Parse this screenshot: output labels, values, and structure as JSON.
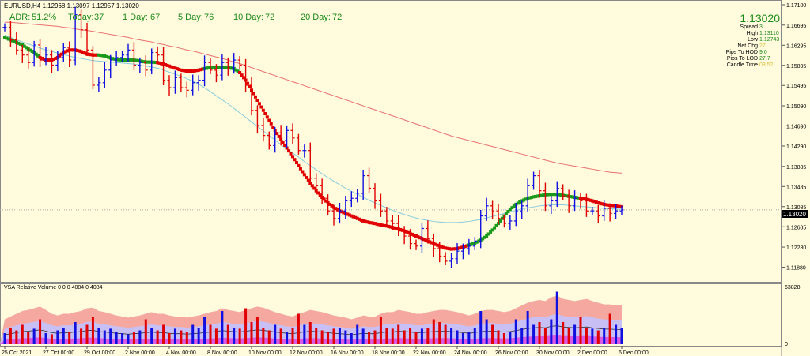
{
  "header": {
    "symbol_line": "EURUSD,H4  1.12968 1.13097 1.12957 1.13020",
    "adr_label": "ADR:",
    "adr_value": "51.2%",
    "sep": "|",
    "today_label": "Today:",
    "today_value": "37",
    "day1_label": "1 Day:",
    "day1_value": "67",
    "day5_label": "5 Day:",
    "day5_value": "76",
    "day10_label": "10 Day:",
    "day10_value": "72",
    "day20_label": "20 Day:",
    "day20_value": "72"
  },
  "info_panel": {
    "price": "1.13020",
    "rows": [
      {
        "label": "Spread",
        "value": "3"
      },
      {
        "label": "High",
        "value": "1.13110"
      },
      {
        "label": "Low",
        "value": "1.12743"
      },
      {
        "label": "Net Chg",
        "value": "27"
      },
      {
        "label": "Pips To HOD",
        "value": "9.0"
      },
      {
        "label": "Pips To LOD",
        "value": "27.7"
      },
      {
        "label": "Candle Time",
        "value": "03:52"
      }
    ]
  },
  "current_price_label": "1.13020",
  "volume_panel": {
    "title": "VSA Relative Volume 0 0 0 4084 0 4084",
    "max_label": "63828",
    "min_label": "0"
  },
  "colors": {
    "bg": "#fffbdc",
    "bull": "#1010e0",
    "bear": "#e00000",
    "ma_red": "#e00000",
    "ma_green": "#1a9a1a",
    "ma_cyan": "#88ccdd",
    "ma_slow": "#e87070",
    "vol_pink": "#f4a8a0",
    "vol_lav": "#c8c0f4",
    "vol_mag": "#e040e0"
  },
  "chart_data": {
    "type": "line",
    "title": "EURUSD,H4",
    "ylim": [
      1.117,
      1.171
    ],
    "y_ticks": [
      "1.17100",
      "1.16695",
      "1.16295",
      "1.15895",
      "1.15495",
      "1.15090",
      "1.14690",
      "1.14290",
      "1.13885",
      "1.13485",
      "1.13085",
      "1.12685",
      "1.12280",
      "1.11880"
    ],
    "x_ticks": [
      "25 Oct 2021",
      "27 Oct 00:00",
      "29 Oct 00:00",
      "2 Nov 00:00",
      "4 Nov 00:00",
      "8 Nov 00:00",
      "10 Nov 00:00",
      "12 Nov 00:00",
      "16 Nov 00:00",
      "18 Nov 00:00",
      "22 Nov 00:00",
      "24 Nov 00:00",
      "26 Nov 00:00",
      "30 Nov 00:00",
      "2 Dec 00:00",
      "6 Dec 00:00"
    ],
    "closes": [
      1.1665,
      1.164,
      1.162,
      1.161,
      1.1595,
      1.163,
      1.16,
      1.161,
      1.159,
      1.1605,
      1.1625,
      1.16,
      1.169,
      1.166,
      1.162,
      1.155,
      1.1555,
      1.158,
      1.16,
      1.1605,
      1.161,
      1.162,
      1.159,
      1.1595,
      1.158,
      1.1615,
      1.161,
      1.156,
      1.1545,
      1.1565,
      1.1545,
      1.154,
      1.1555,
      1.156,
      1.1595,
      1.158,
      1.157,
      1.1595,
      1.1585,
      1.16,
      1.159,
      1.155,
      1.15,
      1.147,
      1.145,
      1.143,
      1.1455,
      1.144,
      1.146,
      1.1445,
      1.142,
      1.142,
      1.1365,
      1.135,
      1.1325,
      1.13,
      1.1285,
      1.13,
      1.132,
      1.1325,
      1.1335,
      1.137,
      1.1345,
      1.132,
      1.13,
      1.128,
      1.1275,
      1.126,
      1.125,
      1.1235,
      1.123,
      1.1265,
      1.1245,
      1.1225,
      1.121,
      1.12,
      1.1205,
      1.122,
      1.1225,
      1.123,
      1.124,
      1.129,
      1.131,
      1.13,
      1.1285,
      1.1275,
      1.128,
      1.13,
      1.131,
      1.135,
      1.137,
      1.134,
      1.131,
      1.132,
      1.1345,
      1.133,
      1.131,
      1.1325,
      1.132,
      1.13,
      1.13,
      1.129,
      1.1305,
      1.1295,
      1.13,
      1.1302
    ],
    "ma_fast": [
      1.1645,
      1.164,
      1.1635,
      1.163,
      1.1622,
      1.1615,
      1.1605,
      1.16,
      1.16,
      1.1605,
      1.1615,
      1.162,
      1.162,
      1.1617,
      1.1612,
      1.161,
      1.161,
      1.1608,
      1.1604,
      1.1601,
      1.16,
      1.16,
      1.16,
      1.1598,
      1.1596,
      1.1596,
      1.1595,
      1.1592,
      1.1588,
      1.1584,
      1.158,
      1.1578,
      1.1578,
      1.158,
      1.1583,
      1.1585,
      1.1585,
      1.1585,
      1.1585,
      1.1583,
      1.1575,
      1.156,
      1.154,
      1.152,
      1.15,
      1.148,
      1.146,
      1.1442,
      1.1425,
      1.1408,
      1.139,
      1.1372,
      1.1355,
      1.134,
      1.1327,
      1.1316,
      1.1307,
      1.13,
      1.1295,
      1.129,
      1.1285,
      1.128,
      1.1277,
      1.1275,
      1.1272,
      1.127,
      1.1267,
      1.1264,
      1.126,
      1.1255,
      1.125,
      1.1245,
      1.124,
      1.1235,
      1.123,
      1.1226,
      1.1224,
      1.1225,
      1.1228,
      1.1232,
      1.1236,
      1.1242,
      1.125,
      1.1262,
      1.1275,
      1.129,
      1.1303,
      1.1313,
      1.132,
      1.1325,
      1.1328,
      1.133,
      1.1332,
      1.1333,
      1.1333,
      1.1331,
      1.1329,
      1.1327,
      1.1325,
      1.1323,
      1.132,
      1.1316,
      1.1313,
      1.1311,
      1.131,
      1.1308
    ],
    "ma_fast_green": [
      [
        0,
        5
      ],
      [
        16,
        25
      ],
      [
        34,
        39
      ],
      [
        79,
        97
      ]
    ],
    "ma_mid": [
      1.165,
      1.1645,
      1.164,
      1.1636,
      1.1632,
      1.1628,
      1.1624,
      1.162,
      1.1617,
      1.1614,
      1.1611,
      1.1608,
      1.1605,
      1.1603,
      1.1601,
      1.1599,
      1.1598,
      1.1597,
      1.1596,
      1.1595,
      1.1594,
      1.1593,
      1.1592,
      1.159,
      1.1588,
      1.1586,
      1.1584,
      1.158,
      1.1576,
      1.1572,
      1.1568,
      1.1563,
      1.1558,
      1.1552,
      1.1545,
      1.1537,
      1.1529,
      1.1521,
      1.1513,
      1.1504,
      1.1495,
      1.1486,
      1.1477,
      1.1468,
      1.1459,
      1.145,
      1.1441,
      1.1432,
      1.1423,
      1.1415,
      1.1407,
      1.1398,
      1.139,
      1.1382,
      1.1374,
      1.1366,
      1.1359,
      1.1352,
      1.1345,
      1.1339,
      1.1333,
      1.1327,
      1.1321,
      1.1316,
      1.1311,
      1.1306,
      1.1301,
      1.1297,
      1.1293,
      1.1289,
      1.1286,
      1.1283,
      1.1281,
      1.1279,
      1.1278,
      1.1277,
      1.1277,
      1.1277,
      1.1278,
      1.1279,
      1.1281,
      1.1283,
      1.1286,
      1.1289,
      1.1292,
      1.1295,
      1.1298,
      1.1301,
      1.1304,
      1.1306,
      1.1308,
      1.131,
      1.1311,
      1.1312,
      1.1312,
      1.1312,
      1.1311,
      1.131,
      1.1309,
      1.1308,
      1.1307,
      1.1306,
      1.1305,
      1.1304,
      1.1304,
      1.1303
    ],
    "ma_slow": [
      1.1675,
      1.1675,
      1.1674,
      1.1673,
      1.1672,
      1.1671,
      1.167,
      1.1669,
      1.1668,
      1.1667,
      1.1665,
      1.1664,
      1.1662,
      1.166,
      1.1659,
      1.1657,
      1.1655,
      1.1653,
      1.1651,
      1.1649,
      1.1647,
      1.1645,
      1.1642,
      1.164,
      1.1638,
      1.1636,
      1.1633,
      1.1631,
      1.1628,
      1.1626,
      1.1623,
      1.162,
      1.1618,
      1.1615,
      1.1612,
      1.1609,
      1.1606,
      1.1603,
      1.16,
      1.1596,
      1.1593,
      1.1589,
      1.1585,
      1.1581,
      1.1577,
      1.1573,
      1.1569,
      1.1565,
      1.1561,
      1.1557,
      1.1553,
      1.1549,
      1.1545,
      1.1541,
      1.1537,
      1.1533,
      1.1529,
      1.1525,
      1.1521,
      1.1517,
      1.1513,
      1.1509,
      1.1505,
      1.1501,
      1.1497,
      1.1493,
      1.1489,
      1.1485,
      1.1481,
      1.1477,
      1.1473,
      1.1469,
      1.1465,
      1.1461,
      1.1457,
      1.1453,
      1.1449,
      1.1446,
      1.1443,
      1.144,
      1.1437,
      1.1434,
      1.1431,
      1.1428,
      1.1425,
      1.1422,
      1.1419,
      1.1416,
      1.1413,
      1.141,
      1.1407,
      1.1404,
      1.1401,
      1.1398,
      1.1395,
      1.1393,
      1.1391,
      1.1389,
      1.1387,
      1.1385,
      1.1383,
      1.1381,
      1.1379,
      1.1377,
      1.1376,
      1.1375
    ],
    "volume": [
      0.2,
      0.3,
      0.25,
      0.35,
      0.22,
      0.28,
      0.45,
      0.2,
      0.18,
      0.25,
      0.3,
      0.22,
      0.4,
      0.28,
      0.35,
      0.5,
      0.3,
      0.25,
      0.28,
      0.22,
      0.2,
      0.18,
      0.22,
      0.25,
      0.45,
      0.3,
      0.25,
      0.35,
      0.2,
      0.28,
      0.25,
      0.22,
      0.35,
      0.3,
      0.5,
      0.35,
      0.28,
      0.6,
      0.35,
      0.3,
      0.28,
      0.65,
      0.4,
      0.5,
      0.3,
      0.25,
      0.35,
      0.28,
      0.22,
      0.3,
      0.55,
      0.35,
      0.4,
      0.3,
      0.25,
      0.22,
      0.28,
      0.3,
      0.25,
      0.2,
      0.35,
      0.28,
      0.22,
      0.25,
      0.5,
      0.3,
      0.28,
      0.35,
      0.25,
      0.3,
      0.22,
      0.28,
      0.3,
      0.45,
      0.4,
      0.35,
      0.3,
      0.25,
      0.2,
      0.22,
      0.3,
      0.6,
      0.45,
      0.35,
      0.25,
      0.2,
      0.22,
      0.45,
      0.3,
      0.6,
      0.35,
      0.4,
      0.3,
      0.45,
      0.95,
      0.4,
      0.3,
      0.35,
      0.5,
      0.3,
      0.28,
      0.25,
      0.3,
      0.55,
      0.35,
      0.3
    ],
    "vol_bg": [
      0.45,
      0.5,
      0.55,
      0.6,
      0.62,
      0.65,
      0.68,
      0.62,
      0.55,
      0.52,
      0.55,
      0.55,
      0.58,
      0.6,
      0.65,
      0.66,
      0.6,
      0.58,
      0.55,
      0.52,
      0.5,
      0.48,
      0.5,
      0.52,
      0.55,
      0.58,
      0.55,
      0.55,
      0.52,
      0.5,
      0.5,
      0.48,
      0.5,
      0.52,
      0.55,
      0.58,
      0.6,
      0.65,
      0.62,
      0.6,
      0.58,
      0.62,
      0.65,
      0.68,
      0.66,
      0.62,
      0.58,
      0.55,
      0.52,
      0.5,
      0.55,
      0.58,
      0.62,
      0.6,
      0.58,
      0.55,
      0.52,
      0.5,
      0.48,
      0.45,
      0.48,
      0.52,
      0.5,
      0.5,
      0.55,
      0.58,
      0.58,
      0.62,
      0.6,
      0.58,
      0.55,
      0.55,
      0.58,
      0.6,
      0.62,
      0.62,
      0.6,
      0.58,
      0.55,
      0.52,
      0.55,
      0.6,
      0.62,
      0.62,
      0.6,
      0.58,
      0.6,
      0.65,
      0.7,
      0.75,
      0.78,
      0.8,
      0.78,
      0.85,
      0.88,
      0.82,
      0.8,
      0.78,
      0.8,
      0.82,
      0.78,
      0.75,
      0.72,
      0.72,
      0.7,
      0.7
    ]
  }
}
